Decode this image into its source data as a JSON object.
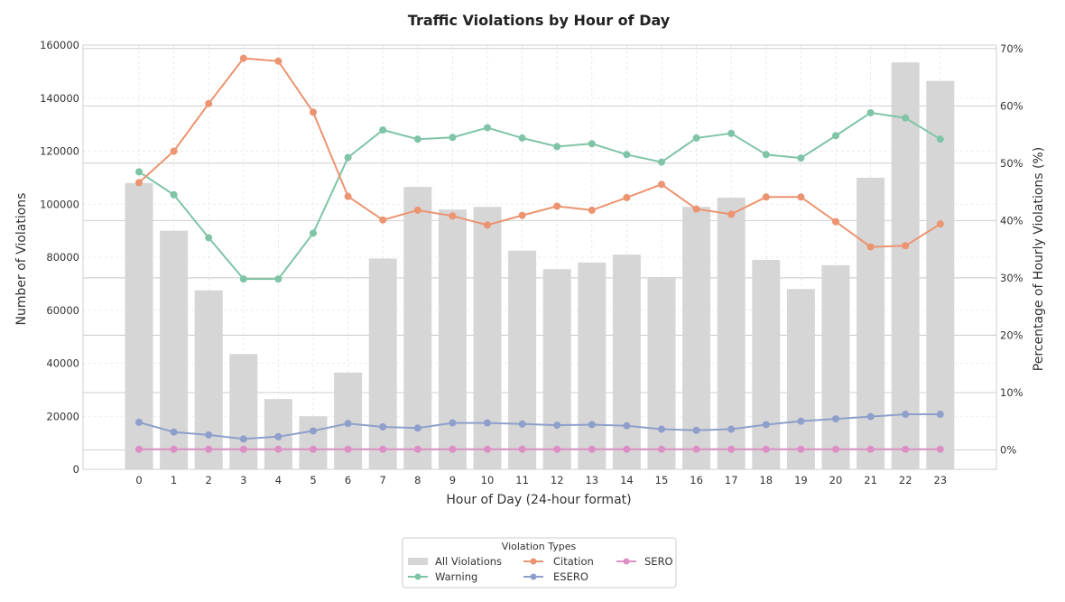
{
  "chart_data": {
    "type": "bar",
    "title": "Traffic Violations by Hour of Day",
    "xlabel": "Hour of Day (24-hour format)",
    "ylabel": "Number of Violations",
    "y2label": "Percentage of Hourly Violations (%)",
    "categories": [
      "0",
      "1",
      "2",
      "3",
      "4",
      "5",
      "6",
      "7",
      "8",
      "9",
      "10",
      "11",
      "12",
      "13",
      "14",
      "15",
      "16",
      "17",
      "18",
      "19",
      "20",
      "21",
      "22",
      "23"
    ],
    "ylim": [
      0,
      160000
    ],
    "yticks": [
      "0",
      "20000",
      "40000",
      "60000",
      "80000",
      "100000",
      "120000",
      "140000",
      "160000"
    ],
    "y2lim": [
      -3.4,
      70.6
    ],
    "y2ticks": [
      "0%",
      "10%",
      "20%",
      "30%",
      "40%",
      "50%",
      "60%",
      "70%"
    ],
    "bars": {
      "name": "All Violations",
      "color": "#d6d6d6",
      "values": [
        108000,
        90000,
        67500,
        43500,
        26500,
        20000,
        36500,
        79500,
        106500,
        98000,
        99000,
        82500,
        75500,
        78000,
        81000,
        72500,
        99000,
        102500,
        79000,
        68000,
        77000,
        110000,
        153500,
        146500
      ]
    },
    "series": [
      {
        "name": "Warning",
        "color": "#7fc4a6",
        "axis": "right",
        "values": [
          48.5,
          44.5,
          37.0,
          29.8,
          29.8,
          37.8,
          51.0,
          55.8,
          54.2,
          54.5,
          56.2,
          54.4,
          52.9,
          53.4,
          51.5,
          50.2,
          54.4,
          55.2,
          51.5,
          50.9,
          54.8,
          58.8,
          57.9,
          54.2
        ]
      },
      {
        "name": "Citation",
        "color": "#ec9370",
        "axis": "right",
        "values": [
          46.6,
          52.1,
          60.4,
          68.3,
          67.8,
          58.9,
          44.2,
          40.1,
          41.8,
          40.8,
          39.2,
          40.9,
          42.5,
          41.8,
          44.0,
          46.3,
          42.0,
          41.1,
          44.1,
          44.1,
          39.8,
          35.4,
          35.6,
          39.4
        ]
      },
      {
        "name": "ESERO",
        "color": "#8e9fcb",
        "axis": "right",
        "values": [
          4.8,
          3.1,
          2.6,
          1.9,
          2.3,
          3.3,
          4.6,
          4.0,
          3.8,
          4.7,
          4.7,
          4.5,
          4.3,
          4.4,
          4.2,
          3.6,
          3.4,
          3.6,
          4.4,
          5.0,
          5.4,
          5.8,
          6.2,
          6.2
        ]
      },
      {
        "name": "SERO",
        "color": "#dc8fc4",
        "axis": "right",
        "values": [
          0.1,
          0.1,
          0.1,
          0.1,
          0.1,
          0.1,
          0.1,
          0.1,
          0.1,
          0.1,
          0.1,
          0.1,
          0.1,
          0.1,
          0.1,
          0.1,
          0.1,
          0.1,
          0.1,
          0.1,
          0.1,
          0.1,
          0.1,
          0.1
        ]
      }
    ],
    "legend": {
      "title": "Violation Types",
      "placement": "bottom-center",
      "entries": [
        "All Violations",
        "Citation",
        "SERO",
        "Warning",
        "ESERO"
      ]
    },
    "grid": true
  }
}
